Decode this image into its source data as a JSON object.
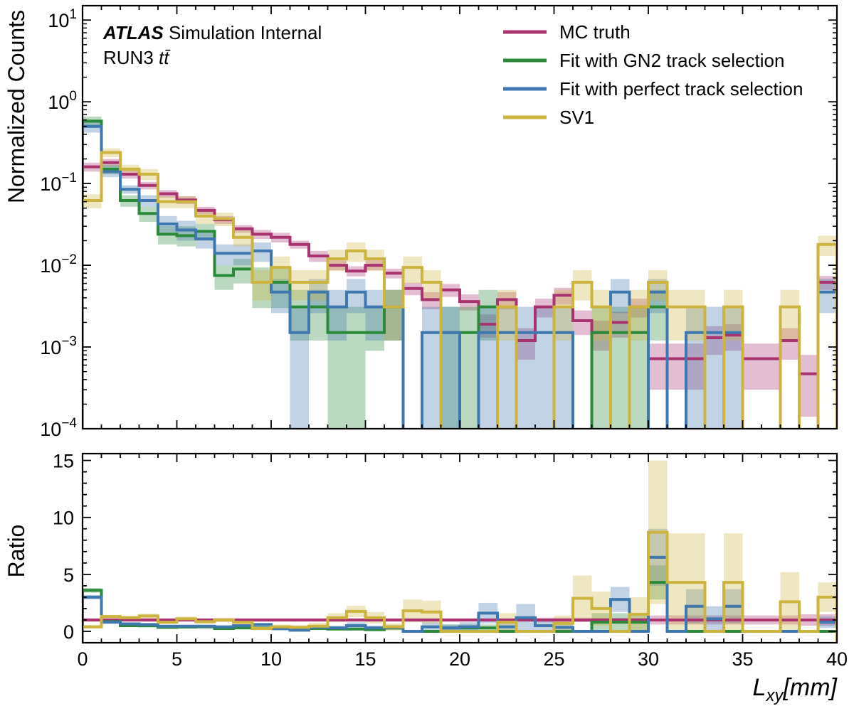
{
  "chart_data": {
    "type": "histogram",
    "annotation": {
      "experiment": "ATLAS",
      "status": " Simulation Internal",
      "run": "RUN3 ",
      "process": "tt̄"
    },
    "x_bin_edges": [
      0,
      1,
      2,
      3,
      4,
      5,
      6,
      7,
      8,
      9,
      10,
      11,
      12,
      13,
      14,
      15,
      16,
      17,
      18,
      19,
      20,
      21,
      22,
      23,
      24,
      25,
      26,
      27,
      28,
      29,
      30,
      31,
      32,
      33,
      34,
      35,
      36,
      37,
      38,
      39,
      40
    ],
    "top_panel": {
      "ylabel": "Normalized Counts",
      "yscale": "log",
      "ylim": [
        0.0001,
        15
      ],
      "ytick_labels": [
        {
          "base": "10",
          "exp": "−4",
          "value": 0.0001
        },
        {
          "base": "10",
          "exp": "−3",
          "value": 0.001
        },
        {
          "base": "10",
          "exp": "−2",
          "value": 0.01
        },
        {
          "base": "10",
          "exp": "−1",
          "value": 0.1
        },
        {
          "base": "10",
          "exp": "0",
          "value": 1
        },
        {
          "base": "10",
          "exp": "1",
          "value": 10
        }
      ]
    },
    "bottom_panel": {
      "ylabel": "Ratio",
      "ylim": [
        -1,
        15.6
      ],
      "yticks": [
        0,
        5,
        10,
        15
      ]
    },
    "xlabel": {
      "main": "L",
      "sub": "xy",
      "unit": "[mm]"
    },
    "xlim": [
      0,
      40
    ],
    "xticks": [
      0,
      5,
      10,
      15,
      20,
      25,
      30,
      35,
      40
    ],
    "legend_position": "top-right",
    "series": [
      {
        "name": "MC truth",
        "color": "#A8336F",
        "values": [
          0.16,
          0.18,
          0.13,
          0.095,
          0.075,
          0.063,
          0.047,
          0.036,
          0.028,
          0.024,
          0.022,
          0.018,
          0.013,
          0.01,
          0.0085,
          0.01,
          0.008,
          0.0052,
          0.0038,
          0.005,
          0.0036,
          0.0019,
          0.0038,
          0.0012,
          0.0031,
          0.0043,
          0.0021,
          0.0015,
          0.002,
          0.0031,
          0.00072,
          0.00072,
          0.00072,
          0.0013,
          0.0014,
          0.00072,
          0.00072,
          0.0012,
          0.00047,
          0.0062
        ],
        "err_low": [
          0.14,
          0.16,
          0.115,
          0.085,
          0.067,
          0.056,
          0.042,
          0.032,
          0.025,
          0.021,
          0.019,
          0.016,
          0.011,
          0.0087,
          0.0073,
          0.0087,
          0.0069,
          0.0043,
          0.0029,
          0.0041,
          0.0028,
          0.0013,
          0.0029,
          0.0007,
          0.0023,
          0.0033,
          0.0014,
          0.0009,
          0.0013,
          0.0023,
          0.0003,
          0.0003,
          0.0003,
          0.0008,
          0.0009,
          0.0003,
          0.0003,
          0.0007,
          0.00014,
          0.005
        ],
        "err_high": [
          0.18,
          0.2,
          0.145,
          0.105,
          0.083,
          0.07,
          0.052,
          0.04,
          0.031,
          0.027,
          0.025,
          0.02,
          0.015,
          0.0115,
          0.0097,
          0.0115,
          0.0091,
          0.0061,
          0.0047,
          0.0059,
          0.0044,
          0.0025,
          0.0047,
          0.0017,
          0.0039,
          0.0053,
          0.0028,
          0.0021,
          0.0027,
          0.0039,
          0.0011,
          0.0011,
          0.0011,
          0.0018,
          0.0019,
          0.0011,
          0.0011,
          0.0017,
          0.0008,
          0.0074
        ],
        "ratio": [
          1,
          1,
          1,
          1,
          1,
          1,
          1,
          1,
          1,
          1,
          1,
          1,
          1,
          1,
          1,
          1,
          1,
          1,
          1,
          1,
          1,
          1,
          1,
          1,
          1,
          1,
          1,
          1,
          1,
          1,
          1,
          1,
          1,
          1,
          1,
          1,
          1,
          1,
          1,
          1
        ],
        "ratio_err": [
          0.15,
          0.15,
          0.15,
          0.15,
          0.15,
          0.15,
          0.15,
          0.15,
          0.15,
          0.15,
          0.15,
          0.15,
          0.15,
          0.15,
          0.15,
          0.15,
          0.15,
          0.15,
          0.15,
          0.15,
          0.15,
          0.15,
          0.15,
          0.15,
          0.2,
          0.2,
          0.2,
          0.2,
          0.2,
          0.2,
          0.4,
          0.4,
          0.4,
          0.4,
          0.4,
          0.4,
          0.4,
          0.4,
          0.5,
          0.5
        ]
      },
      {
        "name": "Fit with GN2 track selection",
        "color": "#2B8A3A",
        "values": [
          0.58,
          0.15,
          0.062,
          0.043,
          0.024,
          0.023,
          0.026,
          0.0075,
          0.009,
          0.0062,
          0.0062,
          0.0031,
          0.0031,
          0.0015,
          0.0015,
          0.0015,
          0.0031,
          5e-05,
          5e-05,
          0.0015,
          0.0015,
          0.0031,
          5e-05,
          5e-05,
          5e-05,
          5e-05,
          5e-05,
          0.0015,
          0.0015,
          0.0015,
          0.0031,
          5e-05,
          5e-05,
          5e-05,
          5e-05,
          5e-05,
          5e-05,
          5e-05,
          5e-05,
          5e-05
        ],
        "err_low": [
          0.5,
          0.13,
          0.052,
          0.034,
          0.018,
          0.017,
          0.02,
          0.005,
          0.006,
          0.003,
          0.003,
          0.0012,
          0.0012,
          0.0001,
          0.0001,
          0.0009,
          0.0012,
          5e-05,
          5e-05,
          0.0001,
          0.0001,
          0.0012,
          5e-05,
          5e-05,
          5e-05,
          5e-05,
          5e-05,
          0.0001,
          0.0001,
          0.0001,
          0.0012,
          5e-05,
          5e-05,
          5e-05,
          5e-05,
          5e-05,
          5e-05,
          5e-05,
          5e-05,
          5e-05
        ],
        "err_high": [
          0.66,
          0.17,
          0.072,
          0.052,
          0.03,
          0.03,
          0.032,
          0.01,
          0.012,
          0.0094,
          0.0094,
          0.005,
          0.005,
          0.0031,
          0.0031,
          0.0031,
          0.005,
          5e-05,
          5e-05,
          0.0031,
          0.0031,
          0.005,
          5e-05,
          5e-05,
          5e-05,
          5e-05,
          5e-05,
          0.0031,
          0.0031,
          0.0031,
          0.005,
          5e-05,
          5e-05,
          5e-05,
          5e-05,
          5e-05,
          5e-05,
          5e-05,
          5e-05,
          5e-05
        ],
        "ratio": [
          3.6,
          0.85,
          0.5,
          0.48,
          0.35,
          0.38,
          0.4,
          0.25,
          0.3,
          0.3,
          0.3,
          0.25,
          0.25,
          0.2,
          0.2,
          0.15,
          0.3,
          0,
          0,
          0.3,
          0.3,
          0.3,
          0,
          0,
          0,
          0,
          0,
          0.8,
          0.8,
          0.8,
          4.3,
          0,
          0,
          0,
          0,
          0,
          0,
          0,
          0,
          0
        ],
        "ratio_err": [
          0.2,
          0.1,
          0.1,
          0.1,
          0.1,
          0.1,
          0.1,
          0.1,
          0.1,
          0.1,
          0.1,
          0.1,
          0.1,
          0.1,
          0.1,
          0.1,
          0.2,
          0,
          0,
          0.3,
          0.3,
          0.3,
          0,
          0,
          0,
          0,
          0,
          0.8,
          0.8,
          0.8,
          1.5,
          0,
          0,
          0,
          0,
          0,
          0,
          0,
          0,
          0
        ]
      },
      {
        "name": "Fit with perfect track selection",
        "color": "#3F77AF",
        "values": [
          0.5,
          0.14,
          0.085,
          0.062,
          0.032,
          0.027,
          0.021,
          0.014,
          0.014,
          0.015,
          0.0047,
          0.0015,
          0.0047,
          0.0031,
          0.0047,
          0.0031,
          0.0031,
          5e-05,
          0.0015,
          0.0015,
          5e-05,
          0.0015,
          0.0015,
          0.0015,
          0.0015,
          0.0015,
          5e-05,
          5e-05,
          0.0047,
          5e-05,
          0.0047,
          5e-05,
          0.0015,
          0.0015,
          0.0015,
          5e-05,
          5e-05,
          5e-05,
          5e-05,
          0.0047
        ],
        "err_low": [
          0.42,
          0.12,
          0.075,
          0.052,
          0.025,
          0.02,
          0.016,
          0.01,
          0.01,
          0.011,
          0.0026,
          0.0001,
          0.0026,
          0.0012,
          0.0026,
          0.0012,
          0.0012,
          5e-05,
          0.0001,
          0.0001,
          5e-05,
          0.0001,
          0.0001,
          0.0001,
          0.0001,
          0.0001,
          5e-05,
          5e-05,
          0.0026,
          5e-05,
          0.0026,
          5e-05,
          0.0001,
          0.0001,
          0.0001,
          5e-05,
          5e-05,
          5e-05,
          5e-05,
          0.0026
        ],
        "err_high": [
          0.58,
          0.16,
          0.095,
          0.072,
          0.04,
          0.035,
          0.027,
          0.018,
          0.018,
          0.019,
          0.0068,
          0.0031,
          0.0068,
          0.005,
          0.0068,
          0.005,
          0.005,
          5e-05,
          0.0031,
          0.0031,
          5e-05,
          0.0031,
          0.0031,
          0.0031,
          0.0031,
          0.0031,
          5e-05,
          5e-05,
          0.0068,
          5e-05,
          0.0068,
          5e-05,
          0.0031,
          0.0031,
          0.0031,
          5e-05,
          5e-05,
          5e-05,
          5e-05,
          0.0068
        ],
        "ratio": [
          3,
          0.8,
          0.65,
          0.6,
          0.45,
          0.45,
          0.45,
          0.4,
          0.5,
          0.6,
          0.25,
          0.1,
          0.35,
          0.3,
          0.5,
          0.3,
          0.35,
          0,
          0.4,
          0.3,
          0.4,
          1.6,
          0.4,
          1.2,
          0.5,
          0.35,
          0,
          0,
          2.8,
          0,
          6.5,
          0,
          2.2,
          1.1,
          2.2,
          0,
          0,
          0,
          0,
          0.8
        ],
        "ratio_err": [
          0.2,
          0.1,
          0.1,
          0.1,
          0.1,
          0.1,
          0.1,
          0.1,
          0.1,
          0.1,
          0.2,
          0.1,
          0.2,
          0.2,
          0.3,
          0.2,
          0.2,
          0,
          0.4,
          0.3,
          0.4,
          0.9,
          0.4,
          1.2,
          0.5,
          0.35,
          0,
          0,
          1.1,
          0,
          2.5,
          0,
          1.5,
          1.1,
          1.5,
          0,
          0,
          0,
          0,
          0.5
        ]
      },
      {
        "name": "SV1",
        "color": "#CDB43E",
        "values": [
          0.062,
          0.24,
          0.15,
          0.13,
          0.06,
          0.06,
          0.04,
          0.037,
          0.022,
          0.0062,
          0.0094,
          0.0062,
          0.0062,
          0.012,
          0.015,
          0.012,
          0.0031,
          0.0094,
          0.0062,
          5e-05,
          5e-05,
          5e-05,
          0.0031,
          5e-05,
          5e-05,
          0.0031,
          0.0062,
          0.0031,
          5e-05,
          0.0031,
          0.0062,
          0.0031,
          0.0031,
          5e-05,
          0.0031,
          5e-05,
          5e-05,
          0.0031,
          5e-05,
          0.018
        ],
        "err_low": [
          0.05,
          0.21,
          0.13,
          0.11,
          0.05,
          0.05,
          0.032,
          0.03,
          0.017,
          0.0037,
          0.006,
          0.0037,
          0.0037,
          0.0085,
          0.011,
          0.0085,
          0.0012,
          0.006,
          0.0037,
          5e-05,
          5e-05,
          5e-05,
          0.0012,
          5e-05,
          5e-05,
          0.0012,
          0.0037,
          0.0012,
          5e-05,
          0.0012,
          0.0037,
          0.0012,
          0.0012,
          5e-05,
          0.0012,
          5e-05,
          5e-05,
          0.0012,
          5e-05,
          0.013
        ],
        "err_high": [
          0.074,
          0.27,
          0.17,
          0.15,
          0.07,
          0.07,
          0.048,
          0.044,
          0.027,
          0.0087,
          0.0128,
          0.0087,
          0.0087,
          0.0155,
          0.019,
          0.0155,
          0.005,
          0.0128,
          0.0087,
          5e-05,
          5e-05,
          5e-05,
          0.005,
          5e-05,
          5e-05,
          0.005,
          0.0087,
          0.005,
          5e-05,
          0.005,
          0.0087,
          0.005,
          0.005,
          5e-05,
          0.005,
          5e-05,
          5e-05,
          0.005,
          5e-05,
          0.023
        ],
        "ratio": [
          0.4,
          1.3,
          1.2,
          1.35,
          0.8,
          1.1,
          0.85,
          1,
          0.8,
          0.25,
          0.4,
          0.35,
          0.45,
          1.2,
          1.75,
          1.2,
          0.4,
          1.8,
          1.7,
          0,
          0,
          0,
          0.8,
          0,
          0,
          0.7,
          2.9,
          2,
          0,
          1.5,
          8.7,
          4.3,
          4.3,
          0,
          4.3,
          0,
          0,
          2.6,
          0,
          3
        ],
        "ratio_err": [
          0.15,
          0.15,
          0.15,
          0.2,
          0.15,
          0.2,
          0.2,
          0.2,
          0.2,
          0.15,
          0.2,
          0.2,
          0.3,
          0.4,
          0.5,
          0.5,
          0.3,
          1,
          1,
          0,
          0,
          0,
          0.8,
          0,
          0,
          0.7,
          2,
          1.5,
          0,
          1.5,
          6.3,
          4.3,
          4.3,
          0,
          4.3,
          0,
          0,
          2.6,
          0,
          1.3
        ]
      }
    ]
  }
}
